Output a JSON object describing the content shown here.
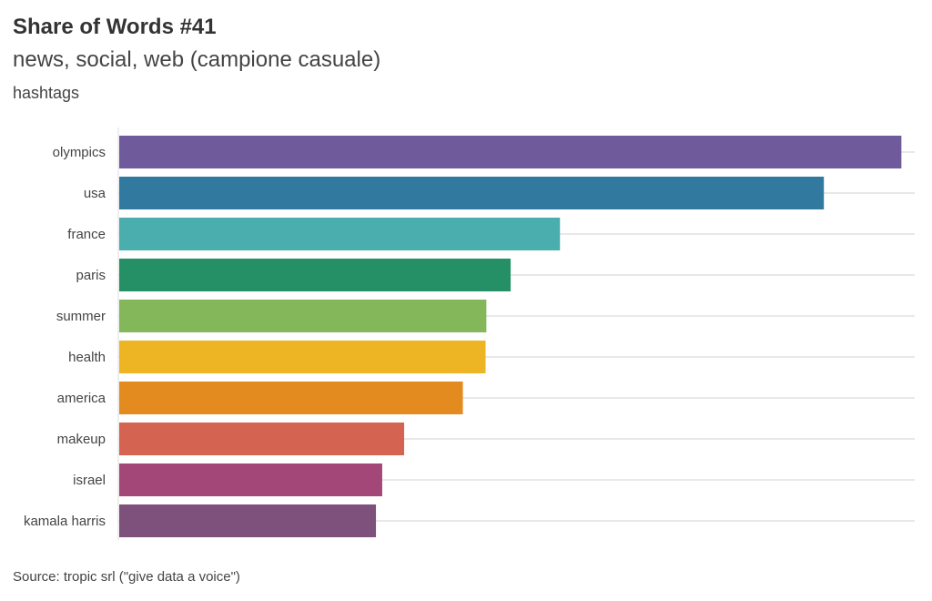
{
  "title": "Share of Words #41",
  "subtitle": "news, social, web (campione casuale)",
  "caption": "hashtags",
  "source": "Source: tropic srl (\"give data a voice\")",
  "chart_data": {
    "type": "bar",
    "orientation": "horizontal",
    "title": "Share of Words #41",
    "subtitle": "news, social, web (campione casuale)",
    "xlabel": "",
    "ylabel": "hashtags",
    "note": "values relative, olympics = 100 (no axis ticks shown)",
    "xlim": [
      0,
      101.7
    ],
    "grid": true,
    "categories": [
      "olympics",
      "usa",
      "france",
      "paris",
      "summer",
      "health",
      "america",
      "makeup",
      "israel",
      "kamala harris"
    ],
    "values": [
      100,
      90.1,
      56.4,
      50.1,
      47.0,
      46.9,
      44.0,
      36.5,
      33.7,
      32.9
    ],
    "colors": [
      "#6f5a9c",
      "#32799f",
      "#4aadae",
      "#259065",
      "#83b75a",
      "#edb523",
      "#e38b1f",
      "#d46351",
      "#a24777",
      "#7d517b"
    ]
  }
}
